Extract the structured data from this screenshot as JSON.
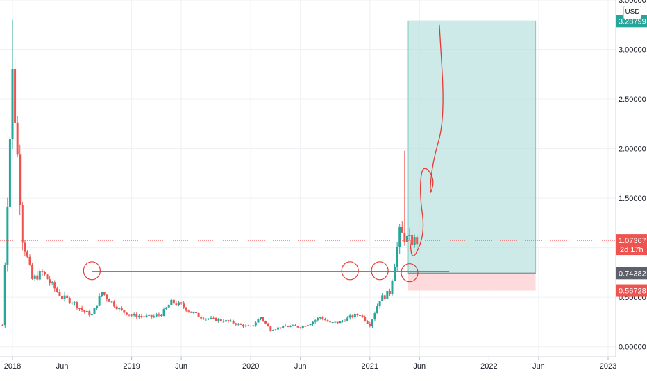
{
  "currency_label": "USD",
  "colors": {
    "grid": "#eef0f4",
    "axis_text": "#131722",
    "up": "#26a69a",
    "down": "#ef5350",
    "support_line": "#4a90e2",
    "profit_zone": "#b2dfdb",
    "loss_zone": "#ffcdd2",
    "last_price_tag": "#ef5350",
    "entry_tag": "#5d606b",
    "target_tag": "#26a69a",
    "stop_tag": "#ef5350",
    "annotation": "#e53935"
  },
  "chart_data": {
    "type": "candlestick",
    "title": "",
    "xlabel": "",
    "ylabel": "",
    "ylim": [
      -0.1,
      3.5
    ],
    "x_ticks": [
      {
        "label": "2018",
        "date": "2018-01"
      },
      {
        "label": "Jun",
        "date": "2018-06"
      },
      {
        "label": "2019",
        "date": "2019-01"
      },
      {
        "label": "Jun",
        "date": "2019-06"
      },
      {
        "label": "2020",
        "date": "2020-01"
      },
      {
        "label": "Jun",
        "date": "2020-06"
      },
      {
        "label": "2021",
        "date": "2021-01"
      },
      {
        "label": "Jun",
        "date": "2021-06"
      },
      {
        "label": "2022",
        "date": "2022-01"
      },
      {
        "label": "Jun",
        "date": "2022-06"
      },
      {
        "label": "2023",
        "date": "2023-01"
      }
    ],
    "y_ticks": [
      "0.00000",
      "0.50000",
      "1.00000",
      "1.50000",
      "2.00000",
      "2.50000",
      "3.00000",
      "3.50000"
    ],
    "price_series": {
      "x": [
        "2017-12",
        "2018-01",
        "2018-02",
        "2018-03",
        "2018-04",
        "2018-05",
        "2018-06",
        "2018-07",
        "2018-08",
        "2018-09",
        "2018-10",
        "2018-11",
        "2018-12",
        "2019-01",
        "2019-02",
        "2019-03",
        "2019-04",
        "2019-05",
        "2019-06",
        "2019-07",
        "2019-08",
        "2019-09",
        "2019-10",
        "2019-11",
        "2019-12",
        "2020-01",
        "2020-02",
        "2020-03",
        "2020-04",
        "2020-05",
        "2020-06",
        "2020-07",
        "2020-08",
        "2020-09",
        "2020-10",
        "2020-11",
        "2020-12",
        "2021-01",
        "2021-02",
        "2021-03",
        "2021-04",
        "2021-05"
      ],
      "close": [
        0.22,
        2.75,
        1.1,
        0.68,
        0.75,
        0.62,
        0.5,
        0.46,
        0.37,
        0.32,
        0.55,
        0.45,
        0.36,
        0.32,
        0.31,
        0.3,
        0.33,
        0.45,
        0.42,
        0.35,
        0.3,
        0.28,
        0.27,
        0.25,
        0.22,
        0.2,
        0.3,
        0.17,
        0.2,
        0.21,
        0.2,
        0.24,
        0.3,
        0.24,
        0.25,
        0.3,
        0.33,
        0.22,
        0.48,
        0.55,
        1.15,
        1.07
      ]
    },
    "horizontal_lines": [
      {
        "name": "",
        "value": 0.76
      }
    ],
    "position_tool": {
      "entry": 0.74382,
      "target": 3.28799,
      "stop": 0.56728,
      "start_date": "2021-05",
      "end_date": "2022-05"
    },
    "price_tags": [
      {
        "value": 3.28799,
        "label": "3.28799",
        "sub": "",
        "kind": "target"
      },
      {
        "value": 1.07367,
        "label": "1.07367",
        "sub": "2d 17h",
        "kind": "last"
      },
      {
        "value": 0.74382,
        "label": "0.74382",
        "sub": "",
        "kind": "entry"
      },
      {
        "value": 0.56728,
        "label": "0.56728",
        "sub": "",
        "kind": "stop"
      }
    ],
    "drawing_path": [
      {
        "date": "2021-05",
        "value": 1.1
      },
      {
        "date": "2021-05",
        "value": 0.85
      },
      {
        "date": "2021-06",
        "value": 1.15
      },
      {
        "date": "2021-06",
        "value": 1.55
      },
      {
        "date": "2021-06",
        "value": 1.85
      },
      {
        "date": "2021-07",
        "value": 1.7
      },
      {
        "date": "2021-07",
        "value": 1.5
      },
      {
        "date": "2021-07",
        "value": 1.85
      },
      {
        "date": "2021-08",
        "value": 2.3
      },
      {
        "date": "2021-08",
        "value": 3.25
      }
    ],
    "circled_points": [
      {
        "date": "2018-09",
        "value": 0.74
      },
      {
        "date": "2020-11",
        "value": 0.74
      },
      {
        "date": "2021-02",
        "value": 0.74
      },
      {
        "date": "2021-05",
        "value": 0.72
      }
    ]
  }
}
